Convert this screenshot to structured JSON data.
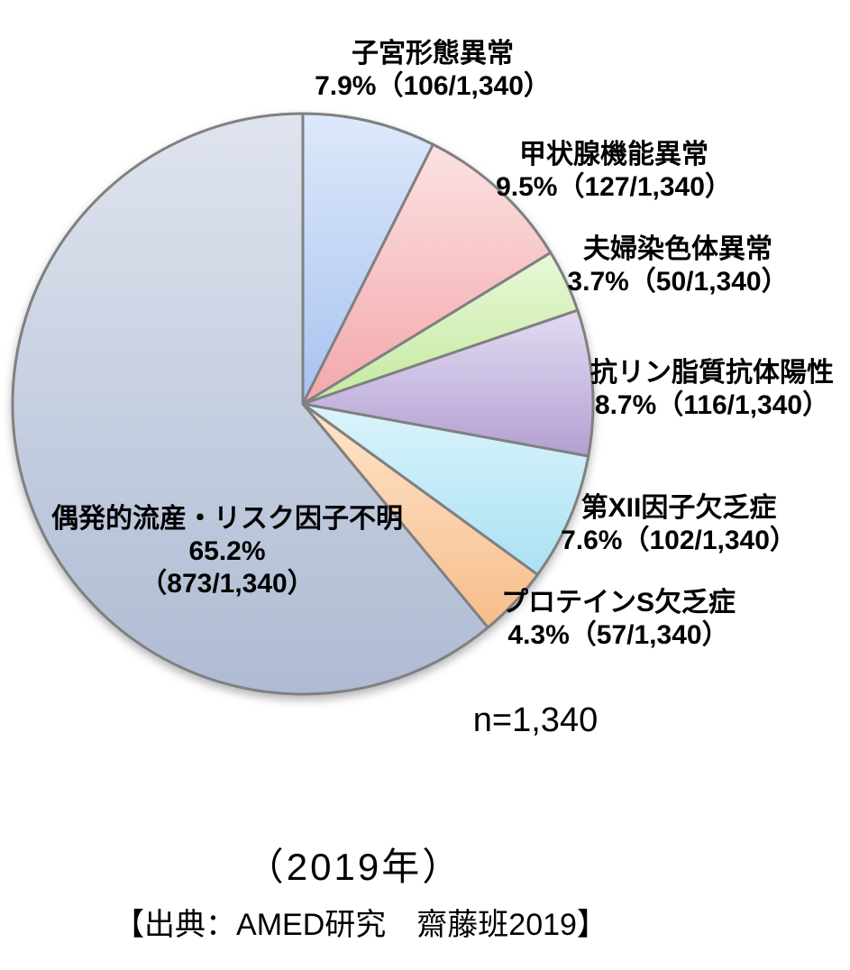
{
  "chart_data": {
    "type": "pie",
    "title": "",
    "n_label": "n=1,340",
    "total_n": 1340,
    "note": "（2019年）",
    "source": "【出典：AMED研究　齋藤班2019】",
    "stroke_color": "#808080",
    "legend_position": "outside-labels",
    "start_angle_deg": 0,
    "direction": "clockwise",
    "slices": [
      {
        "label": "子宮形態異常",
        "value_text": "7.9%（106/1,340）",
        "percent": 7.9,
        "count": 106,
        "color_light": "#dde9fb",
        "color_dark": "#a8c2ef"
      },
      {
        "label": "甲状腺機能異常",
        "value_text": "9.5%（127/1,340）",
        "percent": 9.5,
        "count": 127,
        "color_light": "#fce1e2",
        "color_dark": "#f3a7aa"
      },
      {
        "label": "夫婦染色体異常",
        "value_text": "3.7%（50/1,340）",
        "percent": 3.7,
        "count": 50,
        "color_light": "#e9f8d8",
        "color_dark": "#c3e99f"
      },
      {
        "label": "抗リン脂質抗体陽性",
        "value_text": "8.7%（116/1,340）",
        "percent": 8.7,
        "count": 116,
        "color_light": "#e2dbf2",
        "color_dark": "#b3a0d2"
      },
      {
        "label": "第XII因子欠乏症",
        "value_text": "7.6%（102/1,340）",
        "percent": 7.6,
        "count": 102,
        "color_light": "#dbf4fb",
        "color_dark": "#a9e1f3"
      },
      {
        "label": "プロテインS欠乏症",
        "value_text": "4.3%（57/1,340）",
        "percent": 4.3,
        "count": 57,
        "color_light": "#fee5ca",
        "color_dark": "#f7bd8a"
      },
      {
        "label": "偶発的流産・リスク因子不明",
        "percent_line": "65.2%",
        "fraction_line": "（873/1,340）",
        "percent": 65.2,
        "count": 873,
        "color_light": "#dfe4ee",
        "color_dark": "#aebbd3"
      }
    ]
  }
}
